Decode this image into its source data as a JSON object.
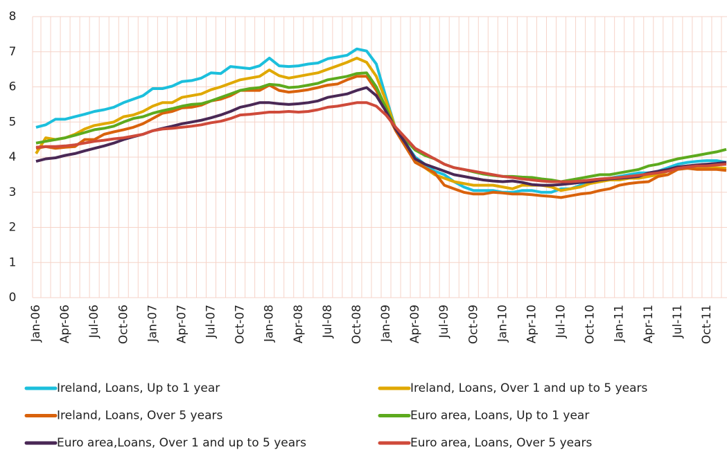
{
  "chart_data": {
    "type": "line",
    "categories": [
      "Jan-06",
      null,
      null,
      "Apr-06",
      null,
      null,
      "Jul-06",
      null,
      null,
      "Oct-06",
      null,
      null,
      "Jan-07",
      null,
      null,
      "Apr-07",
      null,
      null,
      "Jul-07",
      null,
      null,
      "Oct-07",
      null,
      null,
      "Jan-08",
      null,
      null,
      "Apr-08",
      null,
      null,
      "Jul-08",
      null,
      null,
      "Oct-08",
      null,
      null,
      "Jan-09",
      null,
      null,
      "Apr-09",
      null,
      null,
      "Jul-09",
      null,
      null,
      "Oct-09",
      null,
      null,
      "Jan-10",
      null,
      null,
      "Apr-10",
      null,
      null,
      "Jul-10",
      null,
      null,
      "Oct-10",
      null,
      null,
      "Jan-11",
      null,
      null,
      "Apr-11",
      null,
      null,
      "Jul-11",
      null,
      null,
      "Oct-11",
      null,
      null
    ],
    "ylim": [
      0,
      8
    ],
    "yticks": [
      0,
      1,
      2,
      3,
      4,
      5,
      6,
      7,
      8
    ],
    "grid": true,
    "series": [
      {
        "name": "Ireland, Loans, Up to 1 year",
        "color": "#1cbfdc",
        "values": [
          4.85,
          4.92,
          5.08,
          5.08,
          5.15,
          5.22,
          5.3,
          5.35,
          5.42,
          5.55,
          5.65,
          5.75,
          5.95,
          5.95,
          6.02,
          6.15,
          6.18,
          6.25,
          6.4,
          6.38,
          6.58,
          6.55,
          6.52,
          6.6,
          6.82,
          6.6,
          6.58,
          6.6,
          6.65,
          6.68,
          6.8,
          6.85,
          6.9,
          7.08,
          7.02,
          6.65,
          5.7,
          4.8,
          4.4,
          4.0,
          3.8,
          3.6,
          3.5,
          3.3,
          3.15,
          3.05,
          3.05,
          3.05,
          3.0,
          3.0,
          3.05,
          3.05,
          3.0,
          3.0,
          3.1,
          3.1,
          3.2,
          3.3,
          3.35,
          3.4,
          3.45,
          3.5,
          3.55,
          3.55,
          3.6,
          3.7,
          3.8,
          3.85,
          3.88,
          3.9,
          3.9,
          3.85
        ]
      },
      {
        "name": "Ireland, Loans, Over 1 and up to 5 years",
        "color": "#e0a800",
        "values": [
          4.1,
          4.55,
          4.5,
          4.55,
          4.65,
          4.8,
          4.9,
          4.95,
          5.0,
          5.15,
          5.2,
          5.3,
          5.45,
          5.55,
          5.55,
          5.7,
          5.75,
          5.8,
          5.92,
          6.0,
          6.1,
          6.2,
          6.25,
          6.3,
          6.48,
          6.32,
          6.25,
          6.3,
          6.35,
          6.4,
          6.5,
          6.6,
          6.7,
          6.82,
          6.7,
          6.3,
          5.6,
          4.8,
          4.3,
          3.9,
          3.7,
          3.5,
          3.4,
          3.3,
          3.25,
          3.2,
          3.2,
          3.2,
          3.15,
          3.1,
          3.2,
          3.2,
          3.2,
          3.15,
          3.05,
          3.1,
          3.15,
          3.25,
          3.3,
          3.35,
          3.35,
          3.4,
          3.4,
          3.45,
          3.5,
          3.6,
          3.7,
          3.75,
          3.72,
          3.7,
          3.7,
          3.68
        ]
      },
      {
        "name": "Ireland, Loans, Over 5 years",
        "color": "#d9620c",
        "values": [
          4.25,
          4.3,
          4.25,
          4.28,
          4.3,
          4.5,
          4.5,
          4.65,
          4.72,
          4.78,
          4.85,
          4.95,
          5.1,
          5.25,
          5.3,
          5.4,
          5.42,
          5.48,
          5.6,
          5.65,
          5.75,
          5.9,
          5.9,
          5.9,
          6.05,
          5.9,
          5.85,
          5.88,
          5.92,
          5.98,
          6.05,
          6.08,
          6.2,
          6.3,
          6.3,
          5.9,
          5.3,
          4.75,
          4.3,
          3.85,
          3.7,
          3.55,
          3.2,
          3.1,
          3.0,
          2.95,
          2.95,
          3.0,
          2.98,
          2.95,
          2.95,
          2.93,
          2.9,
          2.88,
          2.85,
          2.9,
          2.95,
          2.98,
          3.05,
          3.1,
          3.2,
          3.25,
          3.28,
          3.3,
          3.45,
          3.5,
          3.65,
          3.68,
          3.65,
          3.65,
          3.65,
          3.62
        ]
      },
      {
        "name": "Euro area, Loans, Up to 1 year",
        "color": "#5daa1e",
        "values": [
          4.4,
          4.45,
          4.5,
          4.55,
          4.62,
          4.7,
          4.78,
          4.82,
          4.88,
          5.0,
          5.1,
          5.15,
          5.25,
          5.32,
          5.38,
          5.45,
          5.5,
          5.52,
          5.6,
          5.7,
          5.8,
          5.9,
          5.95,
          5.98,
          6.07,
          6.05,
          5.98,
          6.0,
          6.05,
          6.1,
          6.2,
          6.25,
          6.3,
          6.38,
          6.4,
          6.0,
          5.4,
          4.8,
          4.5,
          4.2,
          4.05,
          3.95,
          3.8,
          3.7,
          3.65,
          3.58,
          3.52,
          3.48,
          3.45,
          3.45,
          3.43,
          3.42,
          3.38,
          3.35,
          3.3,
          3.35,
          3.4,
          3.45,
          3.5,
          3.5,
          3.55,
          3.6,
          3.65,
          3.75,
          3.8,
          3.88,
          3.95,
          4.0,
          4.05,
          4.1,
          4.15,
          4.22
        ]
      },
      {
        "name": "Euro area,Loans, Over 1 and up to 5 years",
        "color": "#4a2855",
        "values": [
          3.88,
          3.95,
          3.98,
          4.05,
          4.1,
          4.18,
          4.25,
          4.32,
          4.4,
          4.5,
          4.58,
          4.65,
          4.75,
          4.82,
          4.88,
          4.95,
          5.0,
          5.05,
          5.12,
          5.2,
          5.3,
          5.42,
          5.48,
          5.55,
          5.55,
          5.52,
          5.5,
          5.52,
          5.55,
          5.6,
          5.7,
          5.75,
          5.8,
          5.9,
          5.98,
          5.75,
          5.3,
          4.8,
          4.4,
          3.95,
          3.8,
          3.7,
          3.6,
          3.5,
          3.45,
          3.4,
          3.35,
          3.32,
          3.3,
          3.32,
          3.28,
          3.22,
          3.2,
          3.2,
          3.22,
          3.25,
          3.28,
          3.3,
          3.35,
          3.38,
          3.4,
          3.42,
          3.45,
          3.55,
          3.6,
          3.65,
          3.72,
          3.75,
          3.78,
          3.8,
          3.82,
          3.85
        ]
      },
      {
        "name": "Euro area, Loans, Over 5 years",
        "color": "#cf4a3a",
        "values": [
          4.28,
          4.3,
          4.3,
          4.32,
          4.35,
          4.4,
          4.45,
          4.48,
          4.52,
          4.55,
          4.6,
          4.65,
          4.75,
          4.8,
          4.82,
          4.85,
          4.88,
          4.92,
          4.98,
          5.02,
          5.1,
          5.2,
          5.22,
          5.25,
          5.28,
          5.28,
          5.3,
          5.28,
          5.3,
          5.35,
          5.42,
          5.45,
          5.5,
          5.55,
          5.55,
          5.45,
          5.2,
          4.85,
          4.55,
          4.25,
          4.1,
          3.95,
          3.8,
          3.7,
          3.65,
          3.6,
          3.55,
          3.5,
          3.45,
          3.42,
          3.38,
          3.35,
          3.32,
          3.3,
          3.3,
          3.3,
          3.32,
          3.35,
          3.38,
          3.4,
          3.42,
          3.45,
          3.48,
          3.52,
          3.55,
          3.6,
          3.68,
          3.72,
          3.75,
          3.75,
          3.78,
          3.8
        ]
      }
    ]
  }
}
